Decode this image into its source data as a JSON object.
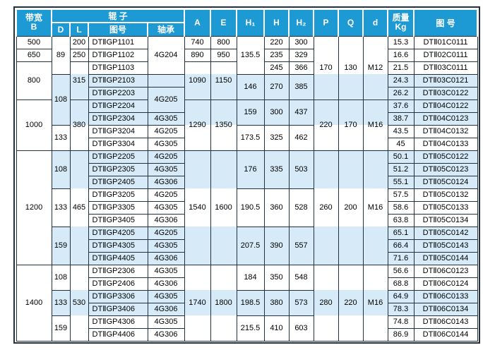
{
  "colors": {
    "header_bg": "#1d9ad4",
    "stripe_bg": "#d6ebf7",
    "grid_line": "#22303f",
    "header_text": "#ffffff"
  },
  "header": {
    "bandwidth_line1": "带宽",
    "bandwidth_line2": "B",
    "roller_group": "辊  子",
    "sub_d": "D",
    "sub_l": "L",
    "sub_fig": "图号",
    "sub_bearing": "轴承",
    "col_a": "A",
    "col_e": "E",
    "col_h1": "H₁",
    "col_h": "H",
    "col_h2": "H₂",
    "col_p": "P",
    "col_q": "Q",
    "col_d": "d",
    "mass_line1": "质量",
    "mass_line2": "Kg",
    "fig": "图 号"
  },
  "body": {
    "rows": [
      {
        "cells": [
          {
            "c": "b",
            "v": "500"
          },
          {
            "c": "d",
            "v": "89",
            "rs": 3
          },
          {
            "c": "l",
            "v": "200"
          },
          {
            "c": "fig-roller",
            "v": "DTⅡGP1101",
            "al": "l"
          },
          {
            "c": "bearing",
            "v": "4G204",
            "rs": 3
          },
          {
            "c": "a",
            "v": "740"
          },
          {
            "c": "e",
            "v": "800"
          },
          {
            "c": "h1",
            "v": "135.5",
            "rs": 3
          },
          {
            "c": "h",
            "v": "220"
          },
          {
            "c": "h2",
            "v": "300"
          },
          {
            "c": "p",
            "v": "170",
            "rs": 5,
            "bg": "w3b2"
          },
          {
            "c": "q",
            "v": "130",
            "rs": 5,
            "bg": "w3b2"
          },
          {
            "c": "dd",
            "v": "M12",
            "rs": 5,
            "bg": "w3b2"
          },
          {
            "c": "mass",
            "v": "15.3"
          },
          {
            "c": "fig",
            "v": "DTⅡ01C0111"
          }
        ]
      },
      {
        "cells": [
          {
            "c": "b",
            "v": "650"
          },
          {
            "c": "l",
            "v": "250"
          },
          {
            "c": "fig-roller",
            "v": "DTⅡGP1102",
            "al": "l"
          },
          {
            "c": "a",
            "v": "890"
          },
          {
            "c": "e",
            "v": "950"
          },
          {
            "c": "h",
            "v": "235"
          },
          {
            "c": "h2",
            "v": "329"
          },
          {
            "c": "mass",
            "v": "16.6"
          },
          {
            "c": "fig",
            "v": "DTⅡ02C0111"
          }
        ]
      },
      {
        "cells": [
          {
            "c": "b",
            "v": "800",
            "rs": 3
          },
          {
            "c": "l",
            "v": "315",
            "rs": 3,
            "bg": "w1b2"
          },
          {
            "c": "fig-roller",
            "v": "DTⅡGP1103",
            "al": "l"
          },
          {
            "c": "a",
            "v": "1090",
            "rs": 3,
            "bg": "w1b2"
          },
          {
            "c": "e",
            "v": "1150",
            "rs": 3,
            "bg": "w1b2"
          },
          {
            "c": "h",
            "v": "245"
          },
          {
            "c": "h2",
            "v": "366"
          },
          {
            "c": "mass",
            "v": "21.5"
          },
          {
            "c": "fig",
            "v": "DTⅡ03C0111"
          }
        ]
      },
      {
        "cells": [
          {
            "c": "d",
            "v": "108",
            "rs": 4,
            "bg": "b"
          },
          {
            "c": "fig-roller",
            "v": "DTⅡGP2103",
            "al": "l",
            "bg": "b"
          },
          {
            "c": "bearing",
            "v": "",
            "bg": "b"
          },
          {
            "c": "h1",
            "v": "146",
            "rs": 2,
            "bg": "b"
          },
          {
            "c": "h",
            "v": "270",
            "rs": 2,
            "bg": "b"
          },
          {
            "c": "h2",
            "v": "385",
            "rs": 2,
            "bg": "b"
          },
          {
            "c": "mass",
            "v": "24.3",
            "bg": "b"
          },
          {
            "c": "fig",
            "v": "DTⅡ03C0121",
            "bg": "b"
          }
        ]
      },
      {
        "cells": [
          {
            "c": "fig-roller",
            "v": "DTⅡGP2203",
            "al": "l",
            "bg": "b"
          },
          {
            "c": "bearing",
            "v": "4G205",
            "rs": 2,
            "bg": "b"
          },
          {
            "c": "mass",
            "v": "26.2",
            "bg": "b"
          },
          {
            "c": "fig",
            "v": "DTⅡ03C0122",
            "bg": "b"
          }
        ]
      },
      {
        "cells": [
          {
            "c": "b",
            "v": "1000",
            "rs": 4
          },
          {
            "c": "l",
            "v": "380",
            "rs": 4,
            "bg": "b2w2"
          },
          {
            "c": "fig-roller",
            "v": "DTⅡGP2204",
            "al": "l",
            "bg": "b"
          },
          {
            "c": "a",
            "v": "1290",
            "rs": 4,
            "bg": "b2w2"
          },
          {
            "c": "e",
            "v": "1350",
            "rs": 4,
            "bg": "b2w2"
          },
          {
            "c": "h1",
            "v": "159",
            "rs": 2,
            "bg": "b"
          },
          {
            "c": "h",
            "v": "300",
            "rs": 2,
            "bg": "b"
          },
          {
            "c": "h2",
            "v": "437",
            "rs": 2,
            "bg": "b"
          },
          {
            "c": "p",
            "v": "220",
            "rs": 4,
            "bg": "b2w2"
          },
          {
            "c": "q",
            "v": "170",
            "rs": 4,
            "bg": "b2w2"
          },
          {
            "c": "dd",
            "v": "M16",
            "rs": 4,
            "bg": "b2w2"
          },
          {
            "c": "mass",
            "v": "37.6",
            "bg": "b"
          },
          {
            "c": "fig",
            "v": "DTⅡ04C0122",
            "bg": "b"
          }
        ]
      },
      {
        "cells": [
          {
            "c": "fig-roller",
            "v": "DTⅡGP2304",
            "al": "l",
            "bg": "b"
          },
          {
            "c": "bearing",
            "v": "4G305",
            "bg": "b"
          },
          {
            "c": "mass",
            "v": "38.7",
            "bg": "b"
          },
          {
            "c": "fig",
            "v": "DTⅡ04C0123",
            "bg": "b"
          }
        ]
      },
      {
        "cells": [
          {
            "c": "d",
            "v": "133",
            "rs": 2
          },
          {
            "c": "fig-roller",
            "v": "DTⅡGP3204",
            "al": "l"
          },
          {
            "c": "bearing",
            "v": "4G205"
          },
          {
            "c": "h1",
            "v": "173.5",
            "rs": 2
          },
          {
            "c": "h",
            "v": "325",
            "rs": 2
          },
          {
            "c": "h2",
            "v": "462",
            "rs": 2
          },
          {
            "c": "mass",
            "v": "43.5"
          },
          {
            "c": "fig",
            "v": "DTⅡ04C0132"
          }
        ]
      },
      {
        "cells": [
          {
            "c": "fig-roller",
            "v": "DTⅡGP3304",
            "al": "l"
          },
          {
            "c": "bearing",
            "v": "4G305"
          },
          {
            "c": "mass",
            "v": "45"
          },
          {
            "c": "fig",
            "v": "DTⅡ04C0133"
          }
        ]
      },
      {
        "cells": [
          {
            "c": "b",
            "v": "1200",
            "rs": 9
          },
          {
            "c": "d",
            "v": "108",
            "rs": 3,
            "bg": "b"
          },
          {
            "c": "l",
            "v": "465",
            "rs": 9,
            "bg": "bwb"
          },
          {
            "c": "fig-roller",
            "v": "DTⅡGP2205",
            "al": "l",
            "bg": "b"
          },
          {
            "c": "bearing",
            "v": "4G205",
            "bg": "b"
          },
          {
            "c": "a",
            "v": "1540",
            "rs": 9,
            "bg": "bwb"
          },
          {
            "c": "e",
            "v": "1600",
            "rs": 9,
            "bg": "bwb"
          },
          {
            "c": "h1",
            "v": "176",
            "rs": 3,
            "bg": "b"
          },
          {
            "c": "h",
            "v": "335",
            "rs": 3,
            "bg": "b"
          },
          {
            "c": "h2",
            "v": "503",
            "rs": 3,
            "bg": "b"
          },
          {
            "c": "p",
            "v": "260",
            "rs": 9,
            "bg": "bwb"
          },
          {
            "c": "q",
            "v": "200",
            "rs": 9,
            "bg": "bwb"
          },
          {
            "c": "dd",
            "v": "M16",
            "rs": 9,
            "bg": "bwb"
          },
          {
            "c": "mass",
            "v": "50.1",
            "bg": "b"
          },
          {
            "c": "fig",
            "v": "DTⅡ05C0122",
            "bg": "b"
          }
        ]
      },
      {
        "cells": [
          {
            "c": "fig-roller",
            "v": "DTⅡGP2305",
            "al": "l",
            "bg": "b"
          },
          {
            "c": "bearing",
            "v": "4G305",
            "bg": "b"
          },
          {
            "c": "mass",
            "v": "51.2",
            "bg": "b"
          },
          {
            "c": "fig",
            "v": "DTⅡ05C0123",
            "bg": "b"
          }
        ]
      },
      {
        "cells": [
          {
            "c": "fig-roller",
            "v": "DTⅡGP2405",
            "al": "l",
            "bg": "b"
          },
          {
            "c": "bearing",
            "v": "4G306",
            "bg": "b"
          },
          {
            "c": "mass",
            "v": "55.1",
            "bg": "b"
          },
          {
            "c": "fig",
            "v": "DTⅡ05C0124",
            "bg": "b"
          }
        ]
      },
      {
        "cells": [
          {
            "c": "d",
            "v": "133",
            "rs": 3
          },
          {
            "c": "fig-roller",
            "v": "DTⅡGP3205",
            "al": "l"
          },
          {
            "c": "bearing",
            "v": "4G205"
          },
          {
            "c": "h1",
            "v": "190.5",
            "rs": 3
          },
          {
            "c": "h",
            "v": "360",
            "rs": 3
          },
          {
            "c": "h2",
            "v": "528",
            "rs": 3
          },
          {
            "c": "mass",
            "v": "57.5"
          },
          {
            "c": "fig",
            "v": "DTⅡ05C0132"
          }
        ]
      },
      {
        "cells": [
          {
            "c": "fig-roller",
            "v": "DTⅡGP3305",
            "al": "l"
          },
          {
            "c": "bearing",
            "v": "4G305"
          },
          {
            "c": "mass",
            "v": "58.6"
          },
          {
            "c": "fig",
            "v": "DTⅡ05C0133"
          }
        ]
      },
      {
        "cells": [
          {
            "c": "fig-roller",
            "v": "DTⅡGP3405",
            "al": "l"
          },
          {
            "c": "bearing",
            "v": "4G306"
          },
          {
            "c": "mass",
            "v": "63.8"
          },
          {
            "c": "fig",
            "v": "DTⅡ05C0134"
          }
        ]
      },
      {
        "cells": [
          {
            "c": "d",
            "v": "159",
            "rs": 3,
            "bg": "b"
          },
          {
            "c": "fig-roller",
            "v": "DTⅡGP4205",
            "al": "l",
            "bg": "b"
          },
          {
            "c": "bearing",
            "v": "4G205",
            "bg": "b"
          },
          {
            "c": "h1",
            "v": "207.5",
            "rs": 3,
            "bg": "b"
          },
          {
            "c": "h",
            "v": "390",
            "rs": 3,
            "bg": "b"
          },
          {
            "c": "h2",
            "v": "557",
            "rs": 3,
            "bg": "b"
          },
          {
            "c": "mass",
            "v": "65.1",
            "bg": "b"
          },
          {
            "c": "fig",
            "v": "DTⅡ05C0142",
            "bg": "b"
          }
        ]
      },
      {
        "cells": [
          {
            "c": "fig-roller",
            "v": "DTⅡGP4305",
            "al": "l",
            "bg": "b"
          },
          {
            "c": "bearing",
            "v": "4G305",
            "bg": "b"
          },
          {
            "c": "mass",
            "v": "66.4",
            "bg": "b"
          },
          {
            "c": "fig",
            "v": "DTⅡ05C0143",
            "bg": "b"
          }
        ]
      },
      {
        "cells": [
          {
            "c": "fig-roller",
            "v": "DTⅡGP4405",
            "al": "l",
            "bg": "b"
          },
          {
            "c": "bearing",
            "v": "4G306",
            "bg": "b"
          },
          {
            "c": "mass",
            "v": "71.6",
            "bg": "b"
          },
          {
            "c": "fig",
            "v": "DTⅡ05C0144",
            "bg": "b"
          }
        ]
      },
      {
        "cells": [
          {
            "c": "b",
            "v": "1400",
            "rs": 6
          },
          {
            "c": "d",
            "v": "108",
            "rs": 2
          },
          {
            "c": "l",
            "v": "530",
            "rs": 6,
            "bg": "wbw"
          },
          {
            "c": "fig-roller",
            "v": "DTⅡGP2306",
            "al": "l"
          },
          {
            "c": "bearing",
            "v": "4G305"
          },
          {
            "c": "a",
            "v": "1740",
            "rs": 6,
            "bg": "wbw"
          },
          {
            "c": "e",
            "v": "1800",
            "rs": 6,
            "bg": "wbw"
          },
          {
            "c": "h1",
            "v": "184",
            "rs": 2
          },
          {
            "c": "h",
            "v": "350",
            "rs": 2
          },
          {
            "c": "h2",
            "v": "548",
            "rs": 2
          },
          {
            "c": "p",
            "v": "280",
            "rs": 6,
            "bg": "wbw"
          },
          {
            "c": "q",
            "v": "220",
            "rs": 6,
            "bg": "wbw"
          },
          {
            "c": "dd",
            "v": "M16",
            "rs": 6,
            "bg": "wbw"
          },
          {
            "c": "mass",
            "v": "56.6"
          },
          {
            "c": "fig",
            "v": "DTⅡ06C0123"
          }
        ]
      },
      {
        "cells": [
          {
            "c": "fig-roller",
            "v": "DTⅡGP2406",
            "al": "l"
          },
          {
            "c": "bearing",
            "v": "4G306"
          },
          {
            "c": "mass",
            "v": "68.8"
          },
          {
            "c": "fig",
            "v": "DTⅡ06C0124"
          }
        ]
      },
      {
        "cells": [
          {
            "c": "d",
            "v": "133",
            "rs": 2,
            "bg": "b"
          },
          {
            "c": "fig-roller",
            "v": "DTⅡGP3306",
            "al": "l",
            "bg": "b"
          },
          {
            "c": "bearing",
            "v": "4G305",
            "bg": "b"
          },
          {
            "c": "h1",
            "v": "198.5",
            "rs": 2,
            "bg": "b"
          },
          {
            "c": "h",
            "v": "380",
            "rs": 2,
            "bg": "b"
          },
          {
            "c": "h2",
            "v": "573",
            "rs": 2,
            "bg": "b"
          },
          {
            "c": "mass",
            "v": "64.9",
            "bg": "b"
          },
          {
            "c": "fig",
            "v": "DTⅡ06C0133",
            "bg": "b"
          }
        ]
      },
      {
        "cells": [
          {
            "c": "fig-roller",
            "v": "DTⅡGP3406",
            "al": "l",
            "bg": "b"
          },
          {
            "c": "bearing",
            "v": "4G306",
            "bg": "b"
          },
          {
            "c": "mass",
            "v": "78.3",
            "bg": "b"
          },
          {
            "c": "fig",
            "v": "DTⅡ06C0134",
            "bg": "b"
          }
        ]
      },
      {
        "cells": [
          {
            "c": "d",
            "v": "159",
            "rs": 2
          },
          {
            "c": "fig-roller",
            "v": "DTⅡGP4306",
            "al": "l"
          },
          {
            "c": "bearing",
            "v": "4G305"
          },
          {
            "c": "h1",
            "v": "215.5",
            "rs": 2
          },
          {
            "c": "h",
            "v": "410",
            "rs": 2
          },
          {
            "c": "h2",
            "v": "603",
            "rs": 2
          },
          {
            "c": "mass",
            "v": "74.8"
          },
          {
            "c": "fig",
            "v": "DTⅡ06C0143"
          }
        ]
      },
      {
        "cells": [
          {
            "c": "fig-roller",
            "v": "DTⅡGP4406",
            "al": "l"
          },
          {
            "c": "bearing",
            "v": "4G306"
          },
          {
            "c": "mass",
            "v": "86.9"
          },
          {
            "c": "fig",
            "v": "DTⅡ06C0144"
          }
        ]
      }
    ]
  }
}
